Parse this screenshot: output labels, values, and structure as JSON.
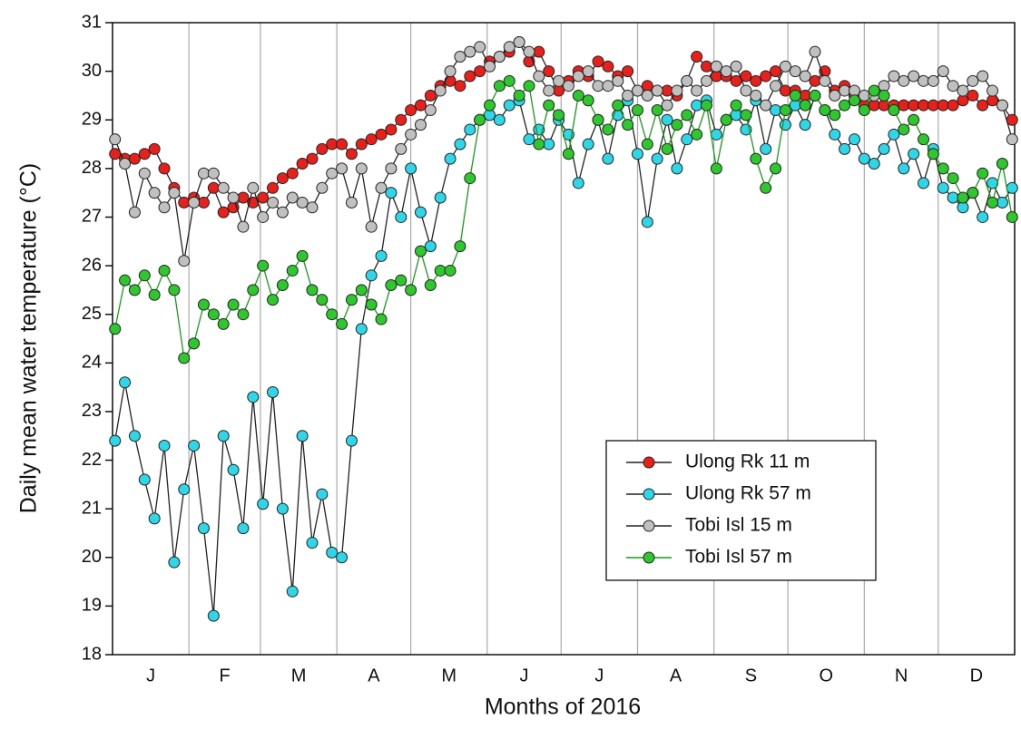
{
  "chart_data": {
    "type": "line",
    "xlabel": "Months of 2016",
    "ylabel": "Daily mean water temperature (°C)",
    "xlim": [
      0,
      366
    ],
    "xticks": [
      0,
      31,
      60,
      91,
      121,
      152,
      182,
      213,
      244,
      274,
      305,
      335,
      366
    ],
    "month_labels": [
      "J",
      "F",
      "M",
      "A",
      "M",
      "J",
      "J",
      "A",
      "S",
      "O",
      "N",
      "D"
    ],
    "ylim": [
      18,
      31
    ],
    "yticks": [
      18,
      19,
      20,
      21,
      22,
      23,
      24,
      25,
      26,
      27,
      28,
      29,
      30,
      31
    ],
    "grid": "x",
    "legend": "lower right",
    "x": [
      1,
      5,
      9,
      13,
      17,
      21,
      25,
      29,
      33,
      37,
      41,
      45,
      49,
      53,
      57,
      61,
      65,
      69,
      73,
      77,
      81,
      85,
      89,
      93,
      97,
      101,
      105,
      109,
      113,
      117,
      121,
      125,
      129,
      133,
      137,
      141,
      145,
      149,
      153,
      157,
      161,
      165,
      169,
      173,
      177,
      181,
      185,
      189,
      193,
      197,
      201,
      205,
      209,
      213,
      217,
      221,
      225,
      229,
      233,
      237,
      241,
      245,
      249,
      253,
      257,
      261,
      265,
      269,
      273,
      277,
      281,
      285,
      289,
      293,
      297,
      301,
      305,
      309,
      313,
      317,
      321,
      325,
      329,
      333,
      337,
      341,
      345,
      349,
      353,
      357,
      361,
      365
    ],
    "series": [
      {
        "name": "Ulong Rk 11 m",
        "color": "#e8201c",
        "line_color": "#222222",
        "values": [
          28.3,
          28.2,
          28.2,
          28.3,
          28.4,
          28.0,
          27.6,
          27.3,
          27.4,
          27.3,
          27.6,
          27.1,
          27.2,
          27.4,
          27.3,
          27.4,
          27.6,
          27.8,
          27.9,
          28.1,
          28.2,
          28.4,
          28.5,
          28.5,
          28.3,
          28.5,
          28.6,
          28.7,
          28.8,
          29.0,
          29.2,
          29.3,
          29.5,
          29.7,
          29.8,
          29.7,
          29.9,
          30.0,
          30.2,
          30.3,
          30.4,
          30.6,
          30.2,
          30.4,
          30.0,
          29.6,
          29.8,
          30.0,
          29.9,
          30.2,
          30.1,
          29.9,
          30.0,
          29.6,
          29.7,
          29.6,
          29.6,
          29.5,
          29.8,
          30.3,
          30.1,
          29.9,
          29.9,
          29.8,
          29.9,
          29.8,
          29.9,
          30.0,
          29.6,
          29.6,
          29.5,
          29.8,
          30.0,
          29.6,
          29.7,
          29.5,
          29.3,
          29.3,
          29.3,
          29.3,
          29.3,
          29.3,
          29.3,
          29.3,
          29.3,
          29.3,
          29.4,
          29.5,
          29.3,
          29.4,
          29.3,
          29.0
        ]
      },
      {
        "name": "Ulong Rk 57 m",
        "color": "#2fd6e8",
        "line_color": "#222222",
        "values": [
          22.4,
          23.6,
          22.5,
          21.6,
          20.8,
          22.3,
          19.9,
          21.4,
          22.3,
          20.6,
          18.8,
          22.5,
          21.8,
          20.6,
          23.3,
          21.1,
          23.4,
          21.0,
          19.3,
          22.5,
          20.3,
          21.3,
          20.1,
          20.0,
          22.4,
          24.7,
          25.8,
          26.2,
          27.5,
          27.0,
          28.0,
          27.1,
          26.4,
          27.4,
          28.2,
          28.5,
          28.8,
          29.0,
          29.1,
          29.0,
          29.3,
          29.4,
          28.6,
          28.8,
          28.5,
          29.0,
          28.7,
          27.7,
          28.5,
          29.0,
          28.2,
          29.1,
          29.4,
          28.3,
          26.9,
          28.2,
          29.0,
          28.0,
          28.6,
          29.3,
          29.4,
          28.7,
          29.0,
          29.1,
          28.8,
          29.4,
          28.4,
          29.2,
          28.9,
          29.3,
          28.9,
          29.5,
          29.2,
          28.7,
          28.4,
          28.6,
          28.2,
          28.1,
          28.4,
          28.7,
          28.0,
          28.3,
          27.7,
          28.4,
          27.6,
          27.4,
          27.2,
          27.5,
          27.0,
          27.7,
          27.3,
          27.6
        ]
      },
      {
        "name": "Tobi Isl 15 m",
        "color": "#c0c0c0",
        "line_color": "#222222",
        "values": [
          28.6,
          28.1,
          27.1,
          27.9,
          27.5,
          27.2,
          27.5,
          26.1,
          27.3,
          27.9,
          27.9,
          27.6,
          27.4,
          26.8,
          27.6,
          27.0,
          27.3,
          27.1,
          27.4,
          27.3,
          27.2,
          27.6,
          27.9,
          28.0,
          27.3,
          28.0,
          26.8,
          27.6,
          28.0,
          28.4,
          28.7,
          28.9,
          29.2,
          29.6,
          30.0,
          30.3,
          30.4,
          30.5,
          30.1,
          30.3,
          30.5,
          30.6,
          30.4,
          29.9,
          29.6,
          29.8,
          29.7,
          29.9,
          30.0,
          29.7,
          29.7,
          29.8,
          29.5,
          29.6,
          29.5,
          29.6,
          29.3,
          29.6,
          29.8,
          29.6,
          29.8,
          30.1,
          30.0,
          30.1,
          29.6,
          29.5,
          29.3,
          29.7,
          30.1,
          30.0,
          29.9,
          30.4,
          29.8,
          29.5,
          29.6,
          29.6,
          29.5,
          29.5,
          29.7,
          29.9,
          29.8,
          29.9,
          29.8,
          29.8,
          30.0,
          29.7,
          29.6,
          29.8,
          29.9,
          29.6,
          29.3,
          28.6
        ]
      },
      {
        "name": "Tobi Isl 57 m",
        "color": "#2ec82e",
        "line_color": "#1a9a1a",
        "values": [
          24.7,
          25.7,
          25.5,
          25.8,
          25.4,
          25.9,
          25.5,
          24.1,
          24.4,
          25.2,
          25.0,
          24.8,
          25.2,
          25.0,
          25.5,
          26.0,
          25.3,
          25.6,
          25.9,
          26.2,
          25.5,
          25.3,
          25.0,
          24.8,
          25.3,
          25.5,
          25.2,
          24.9,
          25.6,
          25.7,
          25.5,
          26.3,
          25.6,
          25.9,
          25.9,
          26.4,
          27.8,
          29.0,
          29.3,
          29.7,
          29.8,
          29.5,
          29.7,
          28.5,
          29.3,
          29.1,
          28.3,
          29.5,
          29.4,
          29.0,
          28.8,
          29.3,
          28.9,
          29.2,
          28.5,
          29.2,
          28.4,
          28.9,
          29.1,
          28.7,
          29.3,
          28.0,
          29.0,
          29.3,
          29.1,
          28.2,
          27.6,
          28.0,
          29.2,
          29.5,
          29.3,
          29.5,
          29.2,
          29.1,
          29.3,
          29.4,
          29.2,
          29.6,
          29.5,
          29.2,
          28.8,
          29.0,
          28.6,
          28.3,
          28.0,
          27.8,
          27.4,
          27.5,
          27.9,
          27.3,
          28.1,
          27.0
        ]
      }
    ]
  }
}
